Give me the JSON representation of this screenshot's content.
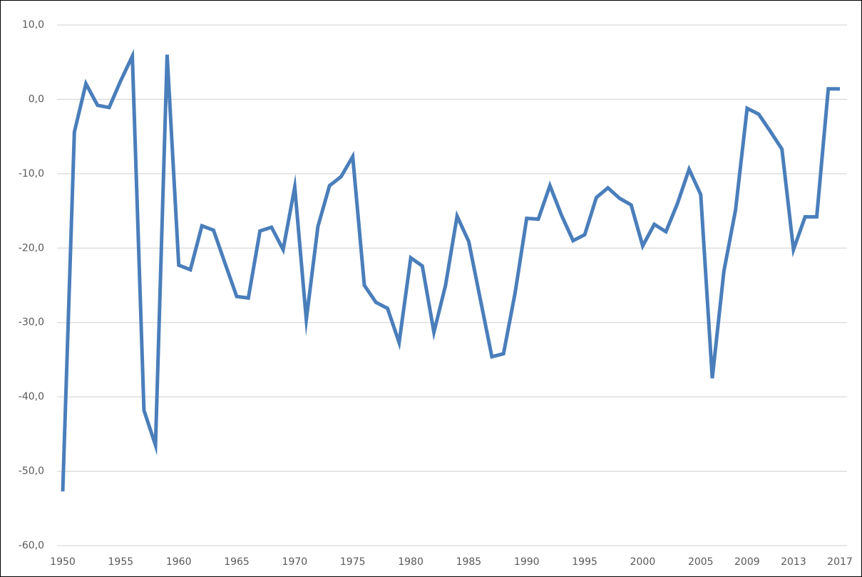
{
  "chart_data": {
    "type": "line",
    "x": [
      1950,
      1951,
      1952,
      1953,
      1954,
      1955,
      1956,
      1957,
      1958,
      1959,
      1960,
      1961,
      1962,
      1963,
      1964,
      1965,
      1966,
      1967,
      1968,
      1969,
      1970,
      1971,
      1972,
      1973,
      1974,
      1975,
      1976,
      1977,
      1978,
      1979,
      1980,
      1981,
      1982,
      1983,
      1984,
      1985,
      1986,
      1987,
      1988,
      1989,
      1990,
      1991,
      1992,
      1993,
      1994,
      1995,
      1996,
      1997,
      1998,
      1999,
      2000,
      2001,
      2002,
      2003,
      2004,
      2005,
      2006,
      2007,
      2008,
      2009,
      2010,
      2011,
      2012,
      2013,
      2014,
      2015,
      2016,
      2017
    ],
    "values": [
      -52.7,
      -4.4,
      2.1,
      -0.8,
      -1.1,
      2.5,
      5.8,
      -41.8,
      -46.5,
      6.0,
      -22.3,
      -22.9,
      -17.0,
      -17.6,
      -22.1,
      -26.5,
      -26.7,
      -17.7,
      -17.2,
      -20.2,
      -11.8,
      -29.6,
      -17.1,
      -11.6,
      -10.4,
      -7.7,
      -25.0,
      -27.3,
      -28.1,
      -32.7,
      -21.3,
      -22.4,
      -31.3,
      -25.0,
      -15.7,
      -19.1,
      -26.9,
      -34.6,
      -34.2,
      -26.0,
      -16.0,
      -16.1,
      -11.6,
      -15.6,
      -19.0,
      -18.2,
      -13.2,
      -11.9,
      -13.3,
      -14.2,
      -19.7,
      -16.8,
      -17.8,
      -14.0,
      -9.4,
      -12.8,
      -37.5,
      -23.1,
      -14.9,
      -1.2,
      -2.0,
      -4.3,
      -6.7,
      -20.2,
      -15.8,
      -15.8,
      1.4,
      1.4
    ],
    "color": "#4a7ebb",
    "xlim": [
      1950,
      2017
    ],
    "xticks": [
      1950,
      1955,
      1960,
      1965,
      1970,
      1975,
      1980,
      1985,
      1990,
      1995,
      2000,
      2005,
      2009,
      2013,
      2017
    ],
    "ylim": [
      -60,
      10
    ],
    "yticks": [
      {
        "value": -60,
        "label": "-60,0"
      },
      {
        "value": -50,
        "label": "-50,0"
      },
      {
        "value": -40,
        "label": "-40,0"
      },
      {
        "value": -30,
        "label": "-30,0"
      },
      {
        "value": -20,
        "label": "-20,0"
      },
      {
        "value": -10,
        "label": "-10,0"
      },
      {
        "value": 0,
        "label": "0,0"
      },
      {
        "value": 10,
        "label": "10,0"
      }
    ],
    "grid": true
  }
}
